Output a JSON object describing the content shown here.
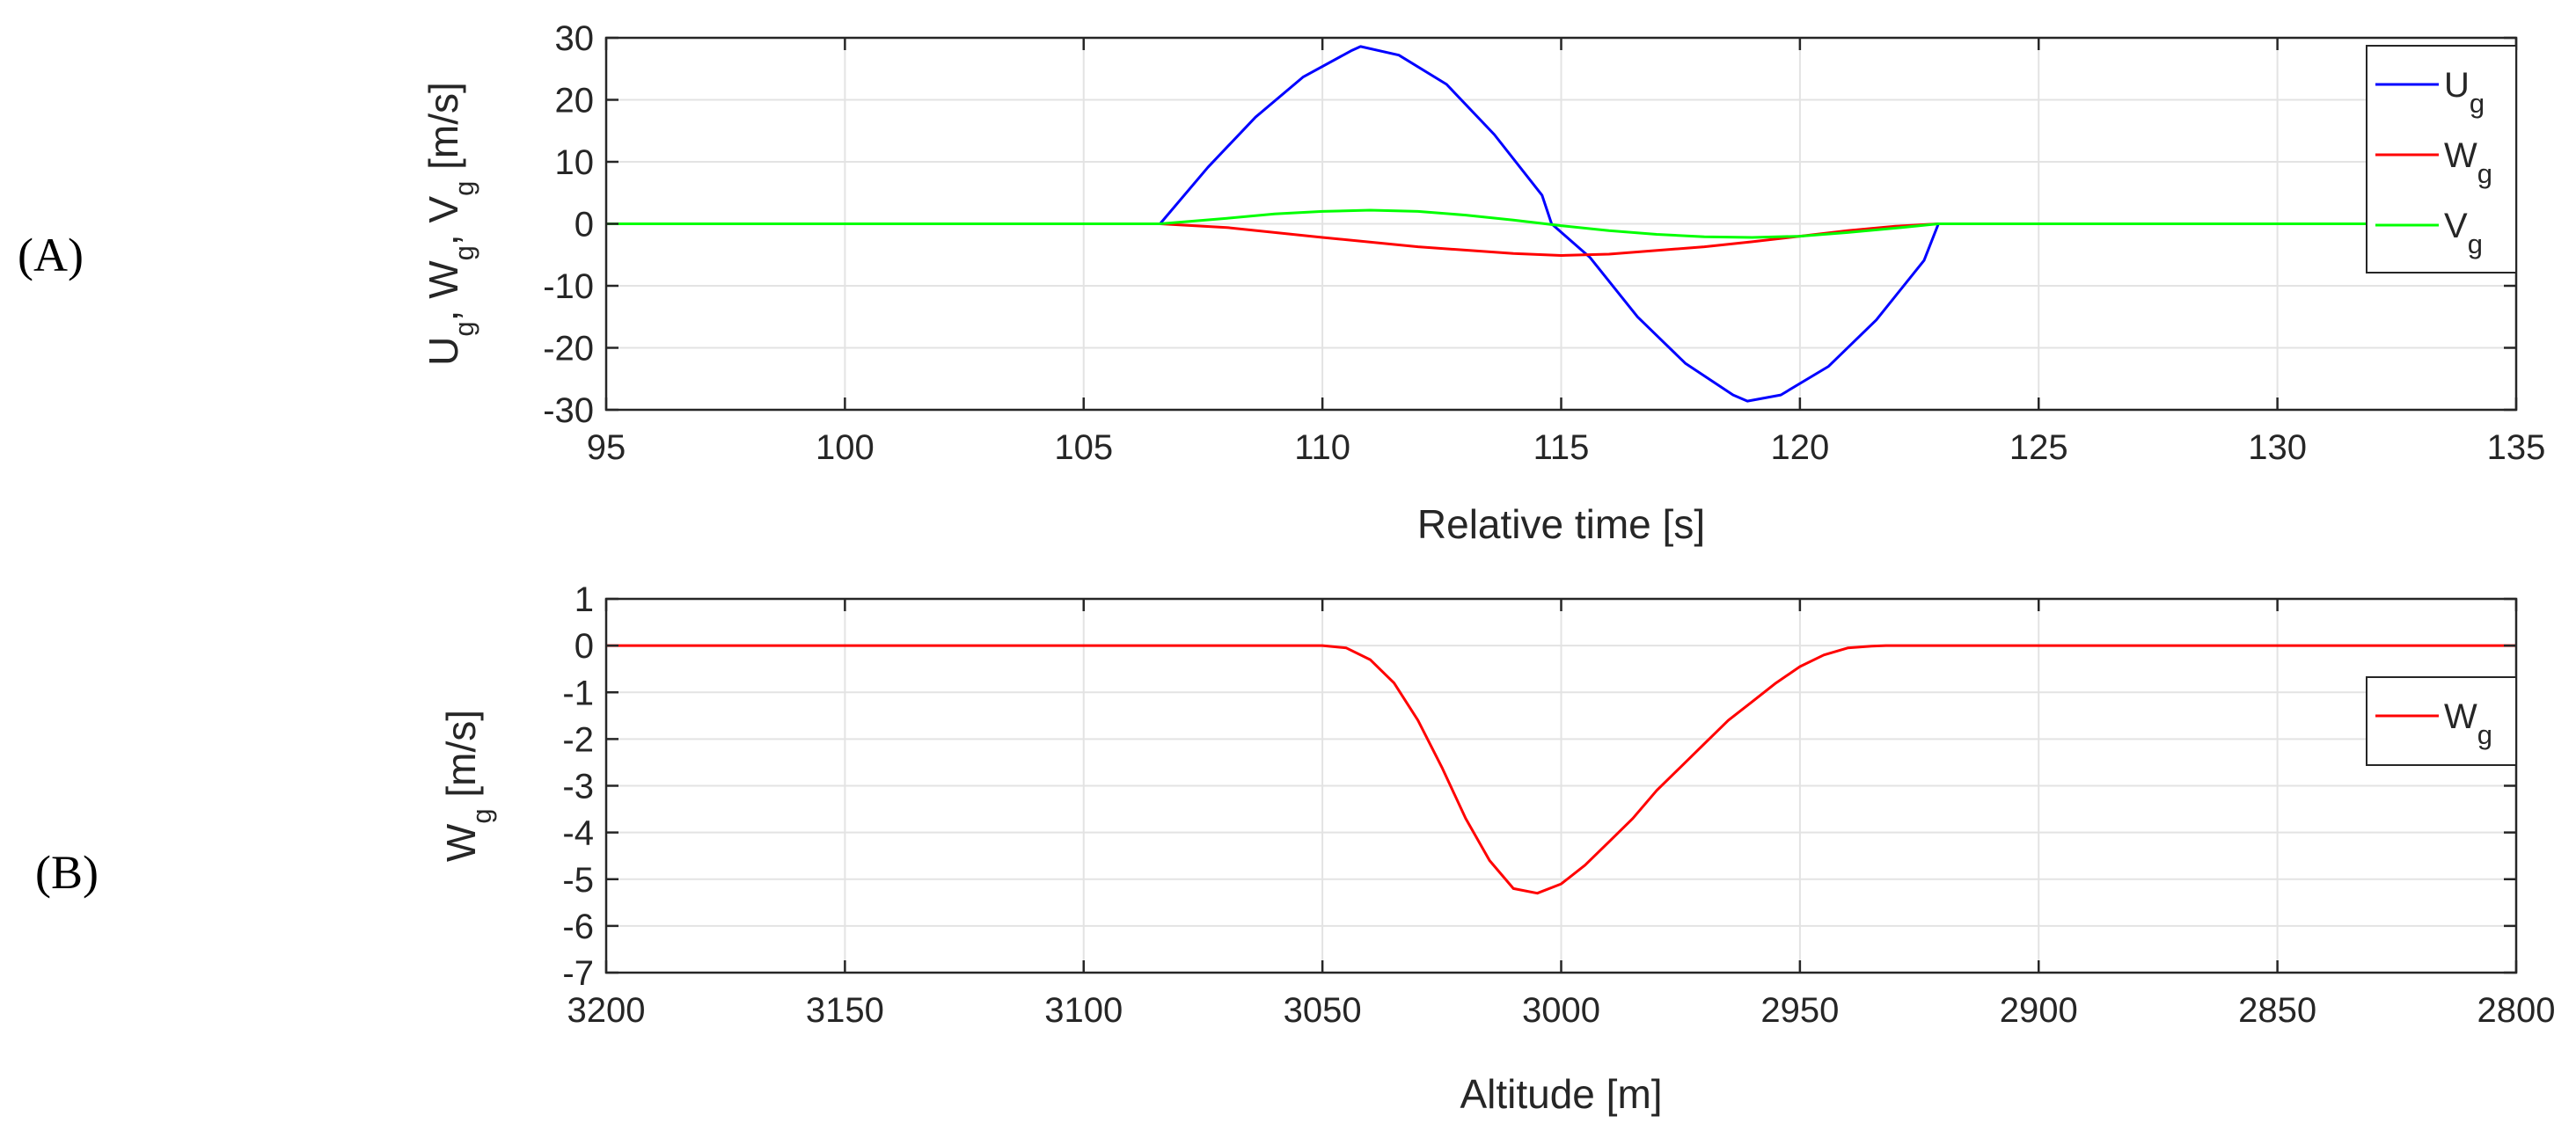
{
  "panels": [
    {
      "label": "(A)"
    },
    {
      "label": "(B)"
    }
  ],
  "chart_data": [
    {
      "type": "line",
      "panel": "(A)",
      "xlabel": "Relative time [s]",
      "ylabel": {
        "parts": [
          {
            "text": "U",
            "sub": false
          },
          {
            "text": "g",
            "sub": true
          },
          {
            "text": ", W",
            "sub": false
          },
          {
            "text": "g",
            "sub": true
          },
          {
            "text": ", V",
            "sub": false
          },
          {
            "text": "g",
            "sub": true
          },
          {
            "text": " [m/s]",
            "sub": false
          }
        ]
      },
      "xlim": [
        95,
        135
      ],
      "ylim": [
        -30,
        30
      ],
      "xticks": [
        95,
        100,
        105,
        110,
        115,
        120,
        125,
        130,
        135
      ],
      "yticks": [
        30,
        20,
        10,
        0,
        -10,
        -20,
        -30
      ],
      "grid": true,
      "legend_position": "top-right",
      "series": [
        {
          "name": "U",
          "sub": "g",
          "color": "#0000ff",
          "x": [
            95,
            106.6,
            107.6,
            108.6,
            109.6,
            110.6,
            110.8,
            111.6,
            112.6,
            113.6,
            114.6,
            114.8,
            115.6,
            116.6,
            117.6,
            118.6,
            118.9,
            119.6,
            120.6,
            121.6,
            122.6,
            122.9,
            135
          ],
          "y": [
            0,
            0,
            9.1,
            17.2,
            23.7,
            27.9,
            28.6,
            27.2,
            22.5,
            14.4,
            4.6,
            0,
            -5.4,
            -15.0,
            -22.5,
            -27.6,
            -28.6,
            -27.6,
            -23.0,
            -15.5,
            -5.9,
            0,
            0
          ]
        },
        {
          "name": "W",
          "sub": "g",
          "color": "#ff0000",
          "x": [
            95,
            106.6,
            108,
            110,
            112,
            114,
            115,
            116,
            118,
            119,
            120,
            121,
            122,
            122.9,
            135
          ],
          "y": [
            0,
            0,
            -0.6,
            -2.2,
            -3.7,
            -4.8,
            -5.1,
            -4.9,
            -3.7,
            -2.9,
            -2.0,
            -1.1,
            -0.4,
            0,
            0
          ]
        },
        {
          "name": "V",
          "sub": "g",
          "color": "#00ff00",
          "x": [
            95,
            106.6,
            108,
            109,
            110,
            111,
            112,
            113,
            114,
            115,
            116,
            117,
            118,
            119,
            120,
            121,
            122,
            122.9,
            135
          ],
          "y": [
            0,
            0,
            0.9,
            1.6,
            2.0,
            2.2,
            2.0,
            1.4,
            0.6,
            -0.3,
            -1.1,
            -1.7,
            -2.1,
            -2.2,
            -2.0,
            -1.4,
            -0.7,
            0,
            0
          ]
        }
      ]
    },
    {
      "type": "line",
      "panel": "(B)",
      "xlabel": "Altitude [m]",
      "ylabel": {
        "parts": [
          {
            "text": "W",
            "sub": false
          },
          {
            "text": "g",
            "sub": true
          },
          {
            "text": " [m/s]",
            "sub": false
          }
        ]
      },
      "xlim": [
        3200,
        2800
      ],
      "ylim": [
        -7,
        1
      ],
      "xticks": [
        3200,
        3150,
        3100,
        3050,
        3000,
        2950,
        2900,
        2850,
        2800
      ],
      "yticks": [
        1,
        0,
        -1,
        -2,
        -3,
        -4,
        -5,
        -6,
        -7
      ],
      "grid": true,
      "legend_position": "right",
      "series": [
        {
          "name": "W",
          "sub": "g",
          "color": "#ff0000",
          "x": [
            3200,
            3050,
            3045,
            3040,
            3035,
            3030,
            3025,
            3020,
            3015,
            3010,
            3005,
            3000,
            2995,
            2990,
            2985,
            2980,
            2975,
            2970,
            2965,
            2960,
            2955,
            2950,
            2945,
            2940,
            2935,
            2932,
            2800
          ],
          "y": [
            0,
            0,
            -0.05,
            -0.3,
            -0.8,
            -1.6,
            -2.6,
            -3.7,
            -4.6,
            -5.2,
            -5.3,
            -5.1,
            -4.7,
            -4.2,
            -3.7,
            -3.1,
            -2.6,
            -2.1,
            -1.6,
            -1.2,
            -0.8,
            -0.45,
            -0.2,
            -0.05,
            -0.01,
            0,
            0
          ]
        }
      ]
    }
  ]
}
